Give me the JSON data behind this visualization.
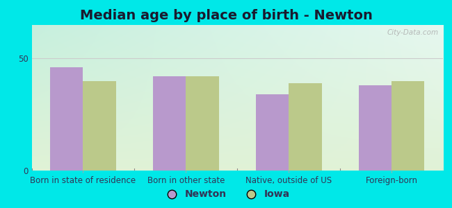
{
  "title": "Median age by place of birth - Newton",
  "categories": [
    "Born in state of residence",
    "Born in other state",
    "Native, outside of US",
    "Foreign-born"
  ],
  "newton_values": [
    46,
    42,
    34,
    38
  ],
  "iowa_values": [
    40,
    42,
    39,
    40
  ],
  "newton_color": "#b899cc",
  "iowa_color": "#bbc98a",
  "ylim": [
    0,
    65
  ],
  "yticks": [
    0,
    50
  ],
  "bar_width": 0.32,
  "title_fontsize": 14,
  "tick_fontsize": 8.5,
  "legend_fontsize": 10,
  "bg_color_topleft": "#c8ede0",
  "bg_color_topright": "#dff0e8",
  "bg_color_bottom": "#e2f0d4",
  "outer_bg": "#00e8e8",
  "watermark": "City-Data.com"
}
